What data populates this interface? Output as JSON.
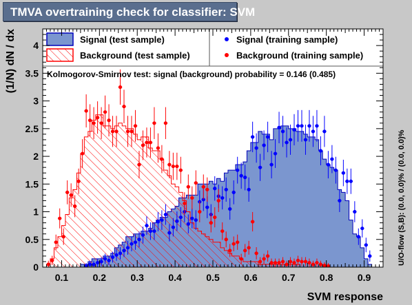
{
  "title": "TMVA overtraining check for classifier: SVM",
  "colors": {
    "frame_bg": "#c8c8c8",
    "plot_bg": "#ffffff",
    "signal_fill": "#7b96cf",
    "signal_edge": "#0000bb",
    "signal_points": "#0000ff",
    "background_hatch": "#ff0000",
    "background_points": "#ff0000"
  },
  "chart_data": {
    "type": "histogram",
    "xlabel": "SVM response",
    "ylabel": "(1/N) dN / dx",
    "right_label": "U/O-flow (S,B): (0.0, 0.0)% / (0.0, 0.0)%",
    "annotation": "Kolmogorov-Smirnov test: signal (background) probability = 0.146 (0.485)",
    "xlim": [
      0.05,
      0.95
    ],
    "ylim": [
      0,
      4.3
    ],
    "xticks": [
      0.1,
      0.2,
      0.3,
      0.4,
      0.5,
      0.6,
      0.7,
      0.8,
      0.9
    ],
    "yticks": [
      0,
      0.5,
      1,
      1.5,
      2,
      2.5,
      3,
      3.5,
      4
    ],
    "grid": false,
    "legend": {
      "left": [
        {
          "label": "Signal (test sample)",
          "style": "filled-blue"
        },
        {
          "label": "Background (test sample)",
          "style": "hatched-red"
        }
      ],
      "right": [
        {
          "label": "Signal (training sample)",
          "style": "blue-marker"
        },
        {
          "label": "Background (training sample)",
          "style": "red-marker"
        }
      ]
    },
    "bin_edges": [
      0.05,
      0.06,
      0.07,
      0.08,
      0.09,
      0.1,
      0.11,
      0.12,
      0.13,
      0.14,
      0.15,
      0.16,
      0.17,
      0.18,
      0.19,
      0.2,
      0.21,
      0.22,
      0.23,
      0.24,
      0.25,
      0.26,
      0.27,
      0.28,
      0.29,
      0.3,
      0.31,
      0.32,
      0.33,
      0.34,
      0.35,
      0.36,
      0.37,
      0.38,
      0.39,
      0.4,
      0.41,
      0.42,
      0.43,
      0.44,
      0.45,
      0.46,
      0.47,
      0.48,
      0.49,
      0.5,
      0.51,
      0.52,
      0.53,
      0.54,
      0.55,
      0.56,
      0.57,
      0.58,
      0.59,
      0.6,
      0.61,
      0.62,
      0.63,
      0.64,
      0.65,
      0.66,
      0.67,
      0.68,
      0.69,
      0.7,
      0.71,
      0.72,
      0.73,
      0.74,
      0.75,
      0.76,
      0.77,
      0.78,
      0.79,
      0.8,
      0.81,
      0.82,
      0.83,
      0.84,
      0.85,
      0.86,
      0.87,
      0.88,
      0.89,
      0.9,
      0.91,
      0.92,
      0.93,
      0.94,
      0.95
    ],
    "series": [
      {
        "name": "Signal (test sample)",
        "kind": "filled-histogram",
        "values": [
          0,
          0,
          0,
          0,
          0,
          0,
          0,
          0,
          0,
          0,
          0.05,
          0.05,
          0.1,
          0.15,
          0.15,
          0.15,
          0.2,
          0.2,
          0.25,
          0.35,
          0.4,
          0.45,
          0.55,
          0.55,
          0.6,
          0.6,
          0.65,
          0.65,
          0.7,
          0.8,
          0.85,
          0.9,
          0.9,
          1.0,
          1.05,
          1.1,
          1.25,
          1.25,
          1.3,
          1.3,
          1.3,
          1.5,
          1.5,
          1.5,
          1.55,
          1.5,
          1.6,
          1.55,
          1.7,
          1.75,
          1.75,
          1.85,
          1.85,
          1.9,
          2.1,
          2.25,
          2.25,
          2.45,
          2.4,
          2.4,
          2.3,
          2.5,
          2.5,
          2.55,
          2.55,
          2.5,
          2.5,
          2.45,
          2.45,
          2.4,
          2.35,
          2.35,
          2.3,
          2.1,
          1.95,
          1.85,
          1.8,
          1.75,
          1.4,
          1.35,
          1.2,
          0.85,
          0.6,
          0.55,
          0.35,
          0.15,
          0.05,
          0,
          0,
          0
        ]
      },
      {
        "name": "Background (test sample)",
        "kind": "hatched-histogram",
        "values": [
          0,
          0.05,
          0.15,
          0.35,
          0.55,
          0.75,
          0.95,
          1.25,
          1.4,
          1.7,
          2.05,
          2.35,
          2.45,
          2.65,
          2.75,
          2.75,
          2.55,
          2.55,
          2.5,
          2.55,
          2.6,
          2.55,
          2.5,
          2.5,
          2.4,
          2.3,
          2.35,
          2.35,
          2.15,
          2.1,
          2.1,
          1.95,
          1.75,
          1.65,
          1.5,
          1.45,
          1.35,
          1.2,
          1.0,
          0.8,
          0.7,
          0.65,
          0.6,
          0.55,
          0.5,
          0.45,
          0.45,
          0.35,
          0.3,
          0.25,
          0.2,
          0.2,
          0.15,
          0.1,
          0.1,
          0.1,
          0.1,
          0.05,
          0.05,
          0.05,
          0.05,
          0.05,
          0.05,
          0.05,
          0.05,
          0.05,
          0.05,
          0.05,
          0,
          0,
          0,
          0,
          0,
          0,
          0,
          0,
          0,
          0,
          0,
          0,
          0,
          0,
          0,
          0,
          0,
          0,
          0,
          0,
          0,
          0
        ]
      },
      {
        "name": "Signal (training sample)",
        "kind": "points",
        "x": [
          0.165,
          0.175,
          0.185,
          0.195,
          0.205,
          0.215,
          0.225,
          0.235,
          0.245,
          0.255,
          0.265,
          0.275,
          0.285,
          0.295,
          0.305,
          0.315,
          0.325,
          0.335,
          0.345,
          0.355,
          0.365,
          0.375,
          0.385,
          0.395,
          0.405,
          0.415,
          0.425,
          0.435,
          0.445,
          0.455,
          0.465,
          0.475,
          0.485,
          0.495,
          0.505,
          0.515,
          0.525,
          0.535,
          0.545,
          0.555,
          0.565,
          0.575,
          0.585,
          0.595,
          0.605,
          0.615,
          0.625,
          0.635,
          0.645,
          0.655,
          0.665,
          0.675,
          0.685,
          0.695,
          0.705,
          0.715,
          0.725,
          0.735,
          0.745,
          0.755,
          0.765,
          0.775,
          0.785,
          0.795,
          0.805,
          0.815,
          0.825,
          0.835,
          0.845,
          0.855,
          0.865,
          0.875,
          0.885,
          0.895,
          0.905,
          0.915
        ],
        "values": [
          0.02,
          0.05,
          0.05,
          0.08,
          0.1,
          0.15,
          0.12,
          0.18,
          0.22,
          0.25,
          0.3,
          0.35,
          0.42,
          0.45,
          0.5,
          0.58,
          0.75,
          0.65,
          0.65,
          0.82,
          0.85,
          0.95,
          0.62,
          0.72,
          0.83,
          0.9,
          1.0,
          0.78,
          0.88,
          0.85,
          1.18,
          1.22,
          1.08,
          0.95,
          1.42,
          1.28,
          1.25,
          1.4,
          1.05,
          1.35,
          1.75,
          1.65,
          1.62,
          1.4,
          2.35,
          2.15,
          1.8,
          2.2,
          2.35,
          1.85,
          2.05,
          2.52,
          2.45,
          2.25,
          2.3,
          2.48,
          2.55,
          2.55,
          2.3,
          2.55,
          2.45,
          2.55,
          2.1,
          2.45,
          1.85,
          1.95,
          1.75,
          1.2,
          1.7,
          1.55,
          1.55,
          1.0,
          0.55,
          0.7,
          0.4,
          0.2
        ]
      },
      {
        "name": "Background (training sample)",
        "kind": "points",
        "x": [
          0.065,
          0.075,
          0.085,
          0.095,
          0.105,
          0.115,
          0.125,
          0.135,
          0.145,
          0.155,
          0.165,
          0.175,
          0.185,
          0.195,
          0.205,
          0.215,
          0.225,
          0.235,
          0.245,
          0.255,
          0.265,
          0.275,
          0.285,
          0.295,
          0.305,
          0.315,
          0.325,
          0.335,
          0.345,
          0.355,
          0.365,
          0.375,
          0.385,
          0.395,
          0.405,
          0.415,
          0.425,
          0.435,
          0.445,
          0.455,
          0.465,
          0.475,
          0.485,
          0.495,
          0.505,
          0.515,
          0.525,
          0.535,
          0.545,
          0.555,
          0.565,
          0.575,
          0.585,
          0.595,
          0.605,
          0.615,
          0.625,
          0.635,
          0.645,
          0.655,
          0.665,
          0.675,
          0.685,
          0.695,
          0.705,
          0.715,
          0.725,
          0.735,
          0.745,
          0.755,
          0.765,
          0.775,
          0.785,
          0.795,
          0.805
        ],
        "values": [
          0.05,
          0.12,
          0.45,
          0.88,
          0.55,
          1.35,
          1.3,
          1.1,
          1.55,
          2.05,
          2.82,
          2.65,
          2.6,
          2.7,
          2.6,
          2.8,
          2.65,
          2.45,
          2.45,
          3.25,
          2.9,
          2.45,
          2.45,
          2.55,
          1.85,
          2.2,
          2.25,
          2.25,
          2.6,
          2.15,
          1.95,
          2.6,
          1.85,
          1.82,
          1.82,
          1.75,
          1.15,
          1.45,
          1.25,
          1.52,
          1.0,
          1.45,
          1.4,
          0.8,
          0.9,
          1.2,
          0.65,
          0.5,
          0.3,
          0.42,
          0.45,
          0.15,
          0.3,
          0.35,
          0.82,
          0.25,
          0.1,
          0.15,
          0.2,
          0.08,
          0.08,
          0.08,
          0.1,
          0.05,
          0.1,
          0.08,
          0.12,
          0.1,
          0.1,
          0.08,
          0.05,
          0.08,
          0.05,
          0.03,
          0.02
        ]
      }
    ]
  }
}
